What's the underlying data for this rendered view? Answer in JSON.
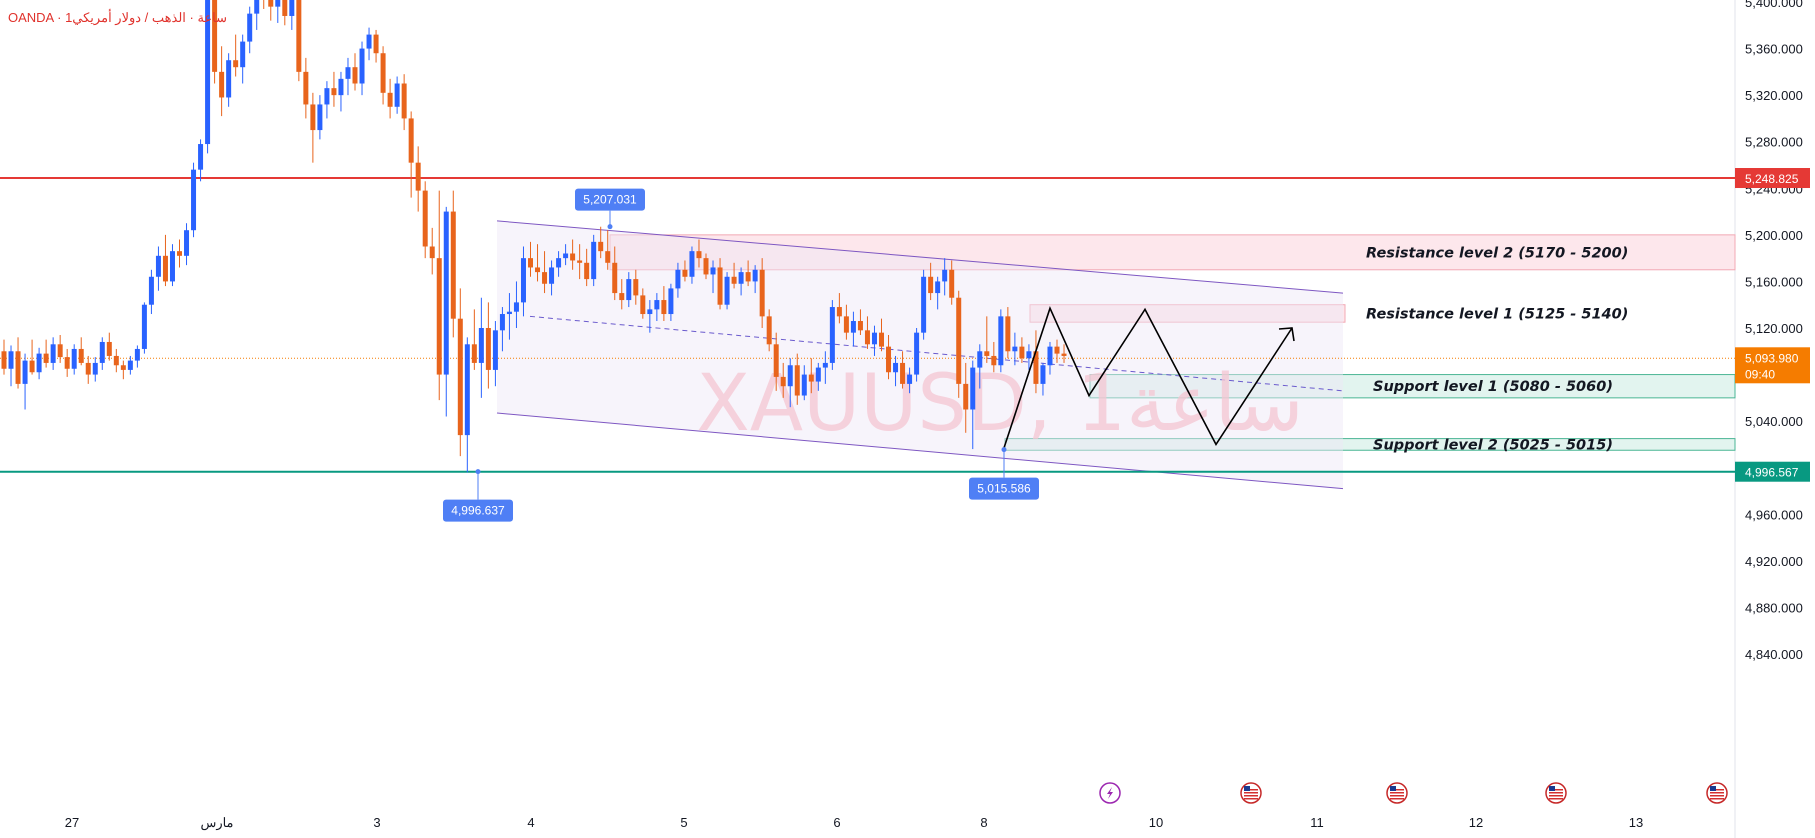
{
  "header": {
    "symbol_line": "OANDA · 1ساعة · الذهب / دولار أمريكي"
  },
  "watermark": "XAUUSD, 1ساعة",
  "colors": {
    "up": "#2962ff",
    "down": "#e8641c",
    "resistance_line": "#e53935",
    "support_line": "#089981",
    "current_price": "#f57c00",
    "resistance_zone": "#fde7ec",
    "support_zone": "#e2f4ef",
    "channel": "#7e57c2",
    "tag_blue": "#4f7ff5"
  },
  "icons": [
    "lightning-event-icon",
    "us-flag-icon",
    "us-flag-icon",
    "us-flag-icon",
    "us-flag-icon"
  ],
  "chart_data": {
    "type": "candlestick",
    "symbol": "XAUUSD",
    "source": "OANDA",
    "y_range": [
      4810,
      5400
    ],
    "y_ticks": [
      "5,400.000",
      "5,360.000",
      "5,320.000",
      "5,280.000",
      "5,240.000",
      "5,200.000",
      "5,160.000",
      "5,120.000",
      "5,080.000",
      "5,040.000",
      "5,000.000",
      "4,960.000",
      "4,920.000",
      "4,880.000",
      "4,840.000"
    ],
    "x_ticks": [
      "27",
      "مارس",
      "3",
      "4",
      "5",
      "6",
      "8",
      "10",
      "11",
      "12",
      "13"
    ],
    "horizontal_lines": [
      {
        "name": "resistance",
        "price": 5248.825,
        "label": "5,248.825"
      },
      {
        "name": "support",
        "price": 4996.567,
        "label": "4,996.567"
      }
    ],
    "current_price": {
      "price": 5093.98,
      "label": "5,093.980",
      "countdown": "09:40"
    },
    "price_tags": [
      {
        "price": 5207.031,
        "label": "5,207.031"
      },
      {
        "price": 4996.637,
        "label": "4,996.637"
      },
      {
        "price": 5015.586,
        "label": "5,015.586"
      }
    ],
    "zones": [
      {
        "label": "Resistance level 2  (5170 - 5200)",
        "low": 5170,
        "high": 5200
      },
      {
        "label": "Resistance level 1  (5125 - 5140)",
        "low": 5125,
        "high": 5140
      },
      {
        "label": "Support level 1  (5080 - 5060)",
        "low": 5060,
        "high": 5080
      },
      {
        "label": "Support level 2  (5025 - 5015)",
        "low": 5015,
        "high": 5025
      }
    ],
    "candles": [
      [
        5100,
        5110,
        5080,
        5085
      ],
      [
        5085,
        5105,
        5070,
        5100
      ],
      [
        5100,
        5112,
        5068,
        5072
      ],
      [
        5072,
        5098,
        5050,
        5092
      ],
      [
        5092,
        5110,
        5080,
        5082
      ],
      [
        5082,
        5103,
        5076,
        5098
      ],
      [
        5098,
        5110,
        5086,
        5090
      ],
      [
        5090,
        5112,
        5084,
        5106
      ],
      [
        5106,
        5114,
        5090,
        5095
      ],
      [
        5095,
        5102,
        5078,
        5085
      ],
      [
        5085,
        5106,
        5080,
        5102
      ],
      [
        5102,
        5112,
        5088,
        5090
      ],
      [
        5090,
        5096,
        5072,
        5080
      ],
      [
        5080,
        5095,
        5074,
        5090
      ],
      [
        5090,
        5112,
        5084,
        5108
      ],
      [
        5108,
        5116,
        5092,
        5096
      ],
      [
        5096,
        5102,
        5082,
        5088
      ],
      [
        5088,
        5092,
        5076,
        5084
      ],
      [
        5084,
        5096,
        5080,
        5092
      ],
      [
        5092,
        5105,
        5086,
        5102
      ],
      [
        5102,
        5142,
        5098,
        5140
      ],
      [
        5140,
        5170,
        5132,
        5164
      ],
      [
        5164,
        5190,
        5152,
        5182
      ],
      [
        5182,
        5200,
        5156,
        5160
      ],
      [
        5160,
        5192,
        5156,
        5186
      ],
      [
        5186,
        5196,
        5172,
        5182
      ],
      [
        5182,
        5210,
        5174,
        5204
      ],
      [
        5204,
        5262,
        5198,
        5256
      ],
      [
        5256,
        5282,
        5246,
        5278
      ],
      [
        5278,
        5410,
        5270,
        5404
      ],
      [
        5404,
        5420,
        5330,
        5340
      ],
      [
        5340,
        5362,
        5302,
        5318
      ],
      [
        5318,
        5356,
        5310,
        5350
      ],
      [
        5350,
        5372,
        5336,
        5344
      ],
      [
        5344,
        5372,
        5330,
        5366
      ],
      [
        5366,
        5396,
        5356,
        5390
      ],
      [
        5390,
        5430,
        5376,
        5420
      ],
      [
        5420,
        5432,
        5394,
        5402
      ],
      [
        5402,
        5416,
        5384,
        5396
      ],
      [
        5396,
        5412,
        5382,
        5408
      ],
      [
        5408,
        5414,
        5380,
        5388
      ],
      [
        5388,
        5410,
        5376,
        5404
      ],
      [
        5404,
        5412,
        5332,
        5340
      ],
      [
        5340,
        5352,
        5300,
        5312
      ],
      [
        5312,
        5322,
        5262,
        5290
      ],
      [
        5290,
        5320,
        5282,
        5312
      ],
      [
        5312,
        5332,
        5300,
        5326
      ],
      [
        5326,
        5340,
        5310,
        5320
      ],
      [
        5320,
        5340,
        5306,
        5334
      ],
      [
        5334,
        5352,
        5320,
        5344
      ],
      [
        5344,
        5356,
        5324,
        5330
      ],
      [
        5330,
        5366,
        5320,
        5360
      ],
      [
        5360,
        5378,
        5350,
        5372
      ],
      [
        5372,
        5376,
        5348,
        5356
      ],
      [
        5356,
        5362,
        5312,
        5322
      ],
      [
        5322,
        5334,
        5300,
        5310
      ],
      [
        5310,
        5336,
        5304,
        5330
      ],
      [
        5330,
        5338,
        5290,
        5300
      ],
      [
        5300,
        5306,
        5232,
        5262
      ],
      [
        5262,
        5276,
        5220,
        5238
      ],
      [
        5238,
        5246,
        5180,
        5190
      ],
      [
        5190,
        5206,
        5166,
        5180
      ],
      [
        5180,
        5238,
        5058,
        5080
      ],
      [
        5080,
        5224,
        5044,
        5220
      ],
      [
        5220,
        5238,
        5112,
        5128
      ],
      [
        5128,
        5154,
        5010,
        5028
      ],
      [
        5028,
        5112,
        4996,
        5106
      ],
      [
        5106,
        5136,
        5084,
        5090
      ],
      [
        5090,
        5146,
        5060,
        5120
      ],
      [
        5120,
        5142,
        5068,
        5084
      ],
      [
        5084,
        5126,
        5070,
        5118
      ],
      [
        5118,
        5138,
        5100,
        5132
      ],
      [
        5132,
        5150,
        5110,
        5134
      ],
      [
        5134,
        5160,
        5120,
        5142
      ],
      [
        5142,
        5190,
        5130,
        5180
      ],
      [
        5180,
        5194,
        5164,
        5172
      ],
      [
        5172,
        5192,
        5160,
        5168
      ],
      [
        5168,
        5186,
        5150,
        5158
      ],
      [
        5158,
        5178,
        5148,
        5172
      ],
      [
        5172,
        5186,
        5164,
        5180
      ],
      [
        5180,
        5192,
        5174,
        5184
      ],
      [
        5184,
        5196,
        5170,
        5178
      ],
      [
        5178,
        5192,
        5162,
        5176
      ],
      [
        5176,
        5188,
        5156,
        5162
      ],
      [
        5162,
        5200,
        5156,
        5194
      ],
      [
        5194,
        5207,
        5180,
        5186
      ],
      [
        5186,
        5204,
        5170,
        5176
      ],
      [
        5176,
        5190,
        5144,
        5150
      ],
      [
        5150,
        5162,
        5136,
        5144
      ],
      [
        5144,
        5168,
        5138,
        5162
      ],
      [
        5162,
        5170,
        5140,
        5148
      ],
      [
        5148,
        5154,
        5128,
        5132
      ],
      [
        5132,
        5144,
        5116,
        5136
      ],
      [
        5136,
        5150,
        5126,
        5144
      ],
      [
        5144,
        5156,
        5126,
        5132
      ],
      [
        5132,
        5158,
        5126,
        5154
      ],
      [
        5154,
        5176,
        5146,
        5170
      ],
      [
        5170,
        5178,
        5160,
        5164
      ],
      [
        5164,
        5190,
        5158,
        5186
      ],
      [
        5186,
        5196,
        5172,
        5180
      ],
      [
        5180,
        5184,
        5162,
        5166
      ],
      [
        5166,
        5178,
        5150,
        5172
      ],
      [
        5172,
        5180,
        5136,
        5140
      ],
      [
        5140,
        5168,
        5136,
        5164
      ],
      [
        5164,
        5176,
        5154,
        5158
      ],
      [
        5158,
        5172,
        5148,
        5168
      ],
      [
        5168,
        5178,
        5156,
        5160
      ],
      [
        5160,
        5174,
        5150,
        5170
      ],
      [
        5170,
        5180,
        5120,
        5130
      ],
      [
        5130,
        5136,
        5100,
        5106
      ],
      [
        5106,
        5116,
        5066,
        5078
      ],
      [
        5078,
        5090,
        5060,
        5070
      ],
      [
        5070,
        5094,
        5052,
        5088
      ],
      [
        5088,
        5098,
        5054,
        5062
      ],
      [
        5062,
        5088,
        5058,
        5080
      ],
      [
        5080,
        5094,
        5064,
        5074
      ],
      [
        5074,
        5090,
        5066,
        5086
      ],
      [
        5086,
        5100,
        5072,
        5090
      ],
      [
        5090,
        5144,
        5084,
        5138
      ],
      [
        5138,
        5150,
        5124,
        5130
      ],
      [
        5130,
        5140,
        5110,
        5116
      ],
      [
        5116,
        5134,
        5104,
        5126
      ],
      [
        5126,
        5136,
        5114,
        5118
      ],
      [
        5118,
        5130,
        5102,
        5106
      ],
      [
        5106,
        5122,
        5096,
        5116
      ],
      [
        5116,
        5128,
        5100,
        5104
      ],
      [
        5104,
        5114,
        5076,
        5082
      ],
      [
        5082,
        5096,
        5070,
        5090
      ],
      [
        5090,
        5100,
        5068,
        5072
      ],
      [
        5072,
        5086,
        5064,
        5080
      ],
      [
        5080,
        5120,
        5074,
        5116
      ],
      [
        5116,
        5170,
        5110,
        5164
      ],
      [
        5164,
        5176,
        5144,
        5150
      ],
      [
        5150,
        5164,
        5136,
        5160
      ],
      [
        5160,
        5180,
        5148,
        5170
      ],
      [
        5170,
        5178,
        5140,
        5146
      ],
      [
        5146,
        5152,
        5060,
        5072
      ],
      [
        5072,
        5090,
        5030,
        5050
      ],
      [
        5050,
        5092,
        5016,
        5086
      ],
      [
        5086,
        5106,
        5068,
        5100
      ],
      [
        5100,
        5130,
        5090,
        5096
      ],
      [
        5096,
        5108,
        5082,
        5088
      ],
      [
        5088,
        5136,
        5082,
        5130
      ],
      [
        5130,
        5138,
        5094,
        5100
      ],
      [
        5100,
        5116,
        5088,
        5104
      ],
      [
        5104,
        5112,
        5090,
        5094
      ],
      [
        5094,
        5106,
        5084,
        5100
      ],
      [
        5100,
        5118,
        5064,
        5072
      ],
      [
        5072,
        5090,
        5062,
        5088
      ],
      [
        5088,
        5108,
        5080,
        5104
      ],
      [
        5104,
        5110,
        5090,
        5098
      ],
      [
        5098,
        5106,
        5090,
        5096
      ]
    ],
    "channel": {
      "upper": [
        [
          0,
          0
        ],
        [
          0,
          0
        ]
      ],
      "description": "descending purple channel"
    },
    "projection_path": "zig-zag arrow forecast"
  }
}
